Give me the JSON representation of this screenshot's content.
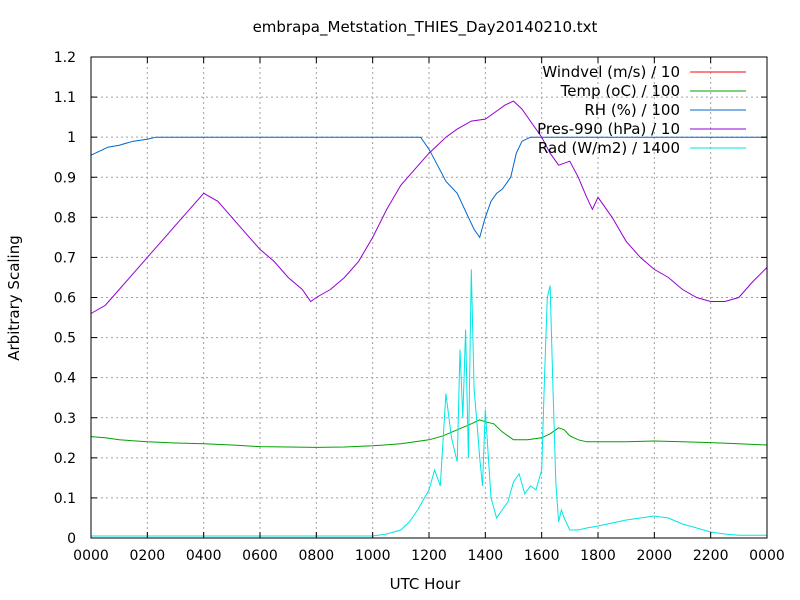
{
  "chart_data": {
    "type": "line",
    "title": "embrapa_Metstation_THIES_Day20140210.txt",
    "xlabel": "UTC Hour",
    "ylabel": "Arbitrary Scaling",
    "xlim": [
      0,
      24
    ],
    "ylim": [
      0,
      1.2
    ],
    "grid": true,
    "legend_position": "top-right",
    "x_ticks": [
      {
        "value": 0,
        "label": "0000"
      },
      {
        "value": 2,
        "label": "0200"
      },
      {
        "value": 4,
        "label": "0400"
      },
      {
        "value": 6,
        "label": "0600"
      },
      {
        "value": 8,
        "label": "0800"
      },
      {
        "value": 10,
        "label": "1000"
      },
      {
        "value": 12,
        "label": "1200"
      },
      {
        "value": 14,
        "label": "1400"
      },
      {
        "value": 16,
        "label": "1600"
      },
      {
        "value": 18,
        "label": "1800"
      },
      {
        "value": 20,
        "label": "2000"
      },
      {
        "value": 22,
        "label": "2200"
      },
      {
        "value": 24,
        "label": "0000"
      }
    ],
    "y_ticks": [
      {
        "value": 0,
        "label": "0"
      },
      {
        "value": 0.1,
        "label": "0.1"
      },
      {
        "value": 0.2,
        "label": "0.2"
      },
      {
        "value": 0.3,
        "label": "0.3"
      },
      {
        "value": 0.4,
        "label": "0.4"
      },
      {
        "value": 0.5,
        "label": "0.5"
      },
      {
        "value": 0.6,
        "label": "0.6"
      },
      {
        "value": 0.7,
        "label": "0.7"
      },
      {
        "value": 0.8,
        "label": "0.8"
      },
      {
        "value": 0.9,
        "label": "0.9"
      },
      {
        "value": 1,
        "label": "1"
      },
      {
        "value": 1.1,
        "label": "1.1"
      },
      {
        "value": 1.2,
        "label": "1.2"
      }
    ],
    "series": [
      {
        "name": "Windvel (m/s) / 10",
        "color": "#ff0000",
        "x": [],
        "y": []
      },
      {
        "name": "Temp (oC) / 100",
        "color": "#00a000",
        "x": [
          0,
          0.5,
          1,
          2,
          3,
          4,
          5,
          6,
          7,
          8,
          9,
          10,
          11,
          11.5,
          12,
          12.5,
          13,
          13.5,
          13.8,
          14,
          14.3,
          14.6,
          15,
          15.5,
          16,
          16.3,
          16.6,
          16.8,
          17,
          17.3,
          17.6,
          18,
          19,
          20,
          21,
          22,
          23,
          24
        ],
        "y": [
          0.253,
          0.25,
          0.245,
          0.24,
          0.237,
          0.235,
          0.232,
          0.228,
          0.227,
          0.226,
          0.227,
          0.23,
          0.235,
          0.24,
          0.245,
          0.255,
          0.27,
          0.285,
          0.295,
          0.29,
          0.285,
          0.265,
          0.245,
          0.245,
          0.25,
          0.26,
          0.275,
          0.27,
          0.255,
          0.245,
          0.24,
          0.24,
          0.24,
          0.242,
          0.24,
          0.238,
          0.235,
          0.232
        ]
      },
      {
        "name": "RH (%) / 100",
        "color": "#0066cc",
        "x": [
          0,
          0.3,
          0.6,
          1,
          1.5,
          2,
          2.3,
          11.7,
          12,
          12.3,
          12.6,
          13,
          13.2,
          13.4,
          13.6,
          13.8,
          14,
          14.2,
          14.4,
          14.6,
          14.9,
          15.1,
          15.3,
          15.6,
          24
        ],
        "y": [
          0.955,
          0.965,
          0.975,
          0.98,
          0.99,
          0.995,
          1.0,
          1.0,
          0.97,
          0.93,
          0.89,
          0.86,
          0.83,
          0.8,
          0.77,
          0.75,
          0.8,
          0.84,
          0.86,
          0.87,
          0.9,
          0.96,
          0.99,
          1.0,
          1.0
        ]
      },
      {
        "name": "Pres-990 (hPa) / 10",
        "color": "#9400d3",
        "x": [
          0,
          0.5,
          1,
          1.5,
          2,
          2.5,
          3,
          3.5,
          4,
          4.5,
          5,
          5.5,
          6,
          6.5,
          7,
          7.5,
          7.8,
          8,
          8.5,
          9,
          9.5,
          10,
          10.5,
          11,
          11.5,
          12,
          12.3,
          12.6,
          13,
          13.5,
          14,
          14.3,
          14.7,
          15,
          15.3,
          15.6,
          16,
          16.3,
          16.6,
          17,
          17.3,
          17.6,
          17.8,
          18,
          18.5,
          19,
          19.5,
          20,
          20.5,
          21,
          21.5,
          22,
          22.5,
          23,
          23.5,
          24
        ],
        "y": [
          0.56,
          0.58,
          0.62,
          0.66,
          0.7,
          0.74,
          0.78,
          0.82,
          0.86,
          0.84,
          0.8,
          0.76,
          0.72,
          0.69,
          0.65,
          0.62,
          0.59,
          0.6,
          0.62,
          0.65,
          0.69,
          0.75,
          0.82,
          0.88,
          0.92,
          0.96,
          0.98,
          1.0,
          1.02,
          1.04,
          1.045,
          1.06,
          1.08,
          1.09,
          1.07,
          1.04,
          1.0,
          0.96,
          0.93,
          0.94,
          0.9,
          0.85,
          0.82,
          0.85,
          0.8,
          0.74,
          0.7,
          0.67,
          0.65,
          0.62,
          0.6,
          0.59,
          0.59,
          0.6,
          0.64,
          0.675
        ]
      },
      {
        "name": "Rad (W/m2) / 1400",
        "color": "#00e5e5",
        "x": [
          0,
          5,
          9,
          10,
          10.5,
          11,
          11.3,
          11.6,
          12,
          12.2,
          12.4,
          12.6,
          12.8,
          13,
          13.1,
          13.2,
          13.3,
          13.4,
          13.5,
          13.6,
          13.7,
          13.8,
          13.9,
          14,
          14.2,
          14.4,
          14.6,
          14.8,
          15,
          15.2,
          15.4,
          15.6,
          15.8,
          16,
          16.1,
          16.2,
          16.3,
          16.4,
          16.5,
          16.6,
          16.7,
          16.8,
          17,
          17.3,
          17.6,
          18,
          19,
          19.5,
          20,
          20.5,
          21,
          21.5,
          22,
          22.5,
          23,
          24
        ],
        "y": [
          0.005,
          0.005,
          0.005,
          0.005,
          0.01,
          0.02,
          0.04,
          0.07,
          0.12,
          0.17,
          0.13,
          0.36,
          0.25,
          0.19,
          0.47,
          0.3,
          0.52,
          0.2,
          0.67,
          0.37,
          0.29,
          0.2,
          0.13,
          0.32,
          0.1,
          0.05,
          0.07,
          0.09,
          0.14,
          0.16,
          0.11,
          0.13,
          0.12,
          0.17,
          0.4,
          0.6,
          0.63,
          0.38,
          0.14,
          0.04,
          0.07,
          0.05,
          0.02,
          0.02,
          0.025,
          0.03,
          0.045,
          0.05,
          0.055,
          0.05,
          0.035,
          0.025,
          0.015,
          0.01,
          0.007,
          0.007
        ]
      }
    ]
  }
}
